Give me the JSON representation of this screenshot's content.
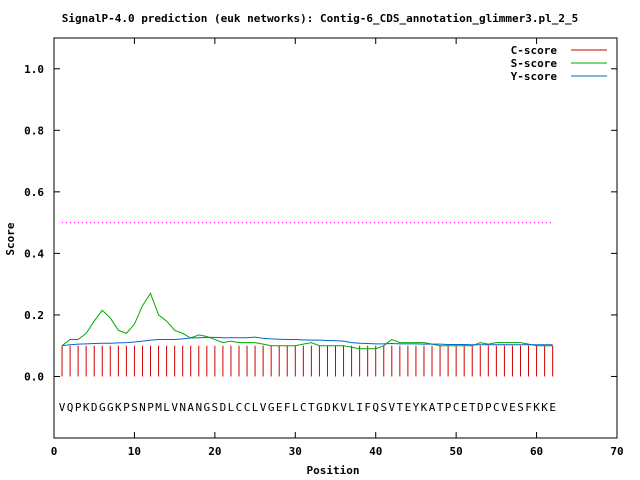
{
  "chart_data": {
    "type": "line",
    "title": "SignalP-4.0 prediction (euk networks): Contig-6_CDS_annotation_glimmer3.pl_2_5",
    "xlabel": "Position",
    "ylabel": "Score",
    "xlim": [
      0,
      70
    ],
    "ylim": [
      -0.2,
      1.1
    ],
    "x_ticks": [
      0,
      10,
      20,
      30,
      40,
      50,
      60,
      70
    ],
    "y_ticks": [
      0.0,
      0.2,
      0.4,
      0.6,
      0.8,
      1.0
    ],
    "x_tick_labels": [
      "0",
      "10",
      "20",
      "30",
      "40",
      "50",
      "60",
      "70"
    ],
    "y_tick_labels": [
      "0.0",
      "0.2",
      "0.4",
      "0.6",
      "0.8",
      "1.0"
    ],
    "legend_position": "top-right",
    "threshold": 0.5,
    "threshold_color": "#ff00ff",
    "sequence": "VQPKDGGKPSNPMLVNANGSDLCCLVGEFLCTGDKVLIFQSVTEYKATPCETDPCVESFKKE",
    "series": [
      {
        "name": "C-score",
        "style": "impulses",
        "color": "#cc0000",
        "values": [
          0.1,
          0.1,
          0.1,
          0.1,
          0.1,
          0.1,
          0.1,
          0.1,
          0.1,
          0.1,
          0.1,
          0.1,
          0.1,
          0.1,
          0.1,
          0.1,
          0.1,
          0.1,
          0.1,
          0.1,
          0.1,
          0.1,
          0.1,
          0.1,
          0.1,
          0.1,
          0.1,
          0.1,
          0.1,
          0.1,
          0.1,
          0.1,
          0.1,
          0.1,
          0.1,
          0.1,
          0.1,
          0.1,
          0.1,
          0.1,
          0.1,
          0.1,
          0.1,
          0.1,
          0.1,
          0.1,
          0.1,
          0.1,
          0.1,
          0.1,
          0.1,
          0.1,
          0.1,
          0.1,
          0.1,
          0.1,
          0.1,
          0.1,
          0.1,
          0.1,
          0.1,
          0.1
        ]
      },
      {
        "name": "S-score",
        "style": "line",
        "color": "#00aa00",
        "values": [
          0.1,
          0.12,
          0.12,
          0.14,
          0.18,
          0.215,
          0.19,
          0.15,
          0.14,
          0.17,
          0.23,
          0.27,
          0.2,
          0.18,
          0.15,
          0.14,
          0.125,
          0.135,
          0.13,
          0.12,
          0.11,
          0.115,
          0.11,
          0.11,
          0.11,
          0.105,
          0.1,
          0.1,
          0.1,
          0.1,
          0.105,
          0.11,
          0.1,
          0.1,
          0.1,
          0.1,
          0.095,
          0.09,
          0.09,
          0.09,
          0.1,
          0.12,
          0.11,
          0.11,
          0.11,
          0.11,
          0.105,
          0.1,
          0.1,
          0.1,
          0.1,
          0.1,
          0.11,
          0.105,
          0.11,
          0.11,
          0.11,
          0.11,
          0.105,
          0.1,
          0.1,
          0.1
        ]
      },
      {
        "name": "Y-score",
        "style": "line",
        "color": "#0066cc",
        "values": [
          0.1,
          0.103,
          0.105,
          0.106,
          0.107,
          0.108,
          0.108,
          0.109,
          0.11,
          0.112,
          0.115,
          0.118,
          0.12,
          0.12,
          0.12,
          0.122,
          0.125,
          0.126,
          0.127,
          0.127,
          0.126,
          0.126,
          0.126,
          0.126,
          0.128,
          0.124,
          0.122,
          0.121,
          0.12,
          0.12,
          0.119,
          0.118,
          0.118,
          0.117,
          0.116,
          0.115,
          0.11,
          0.108,
          0.107,
          0.106,
          0.106,
          0.107,
          0.106,
          0.106,
          0.106,
          0.105,
          0.105,
          0.105,
          0.104,
          0.104,
          0.104,
          0.103,
          0.103,
          0.103,
          0.103,
          0.103,
          0.103,
          0.103,
          0.103,
          0.103,
          0.103,
          0.103
        ]
      }
    ]
  }
}
